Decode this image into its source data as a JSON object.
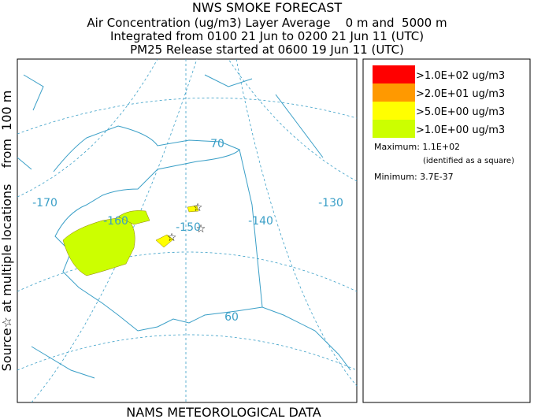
{
  "header": {
    "title": "NWS SMOKE FORECAST",
    "lines": [
      "Air Concentration (ug/m3) Layer Average    0 m and  5000 m",
      "Integrated from 0100 21 Jun to 0200 21 Jun 11 (UTC)",
      "PM25 Release started at 0600 19 Jun 11 (UTC)"
    ]
  },
  "side_label": "Source☆ at multiple locations    from  100 m",
  "footer": "NAMS METEOROLOGICAL DATA",
  "map": {
    "graticule_labels": [
      "-170",
      "-160",
      "-150",
      "-140",
      "-130",
      "70",
      "60"
    ]
  },
  "legend": {
    "items": [
      {
        "label": ">1.0E+02 ug/m3",
        "color": "#ff0000"
      },
      {
        "label": ">2.0E+01 ug/m3",
        "color": "#ff9900"
      },
      {
        "label": ">5.0E+00 ug/m3",
        "color": "#ffff00"
      },
      {
        "label": ">1.0E+00 ug/m3",
        "color": "#ccff00"
      }
    ],
    "maximum": "Maximum: 1.1E+02",
    "max_note": "(identified as a square)",
    "minimum": "Minimum: 3.7E-37"
  }
}
